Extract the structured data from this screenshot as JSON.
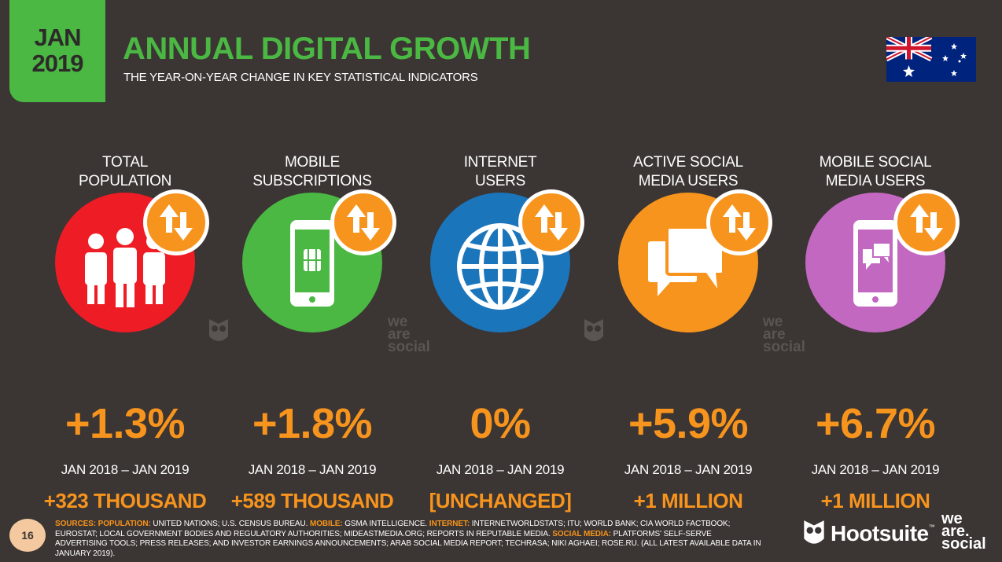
{
  "header": {
    "date_line1": "JAN",
    "date_line2": "2019",
    "title": "ANNUAL DIGITAL GROWTH",
    "subtitle": "THE YEAR-ON-YEAR CHANGE IN KEY STATISTICAL INDICATORS",
    "flag_icon": "australia-flag-icon"
  },
  "colors": {
    "background": "#3b3533",
    "accent_green": "#4ab843",
    "accent_orange": "#f7941d",
    "population_red": "#ee1c25",
    "mobile_green": "#4ab843",
    "internet_blue": "#1b75bb",
    "social_orange": "#f7941d",
    "mobile_social_purple": "#c368c1"
  },
  "indicators": [
    {
      "label_line1": "TOTAL",
      "label_line2": "POPULATION",
      "icon": "people-icon",
      "percent": "+1.3%",
      "period": "JAN 2018 – JAN 2019",
      "change": "+323 THOUSAND"
    },
    {
      "label_line1": "MOBILE",
      "label_line2": "SUBSCRIPTIONS",
      "icon": "mobile-phone-icon",
      "percent": "+1.8%",
      "period": "JAN 2018 – JAN 2019",
      "change": "+589 THOUSAND"
    },
    {
      "label_line1": "INTERNET",
      "label_line2": "USERS",
      "icon": "globe-icon",
      "percent": "0%",
      "period": "JAN 2018 – JAN 2019",
      "change": "[UNCHANGED]"
    },
    {
      "label_line1": "ACTIVE SOCIAL",
      "label_line2": "MEDIA USERS",
      "icon": "chat-bubbles-icon",
      "percent": "+5.9%",
      "period": "JAN 2018 – JAN 2019",
      "change": "+1 MILLION"
    },
    {
      "label_line1": "MOBILE SOCIAL",
      "label_line2": "MEDIA USERS",
      "icon": "mobile-chat-icon",
      "percent": "+6.7%",
      "period": "JAN 2018 – JAN 2019",
      "change": "+1 MILLION"
    }
  ],
  "watermarks": {
    "we": "we",
    "are": "are",
    "social": "social"
  },
  "footer": {
    "page_number": "16",
    "sources_label": "SOURCES:",
    "population_label": "POPULATION:",
    "population_text": " UNITED NATIONS; U.S. CENSUS BUREAU. ",
    "mobile_label": "MOBILE:",
    "mobile_text": " GSMA INTELLIGENCE. ",
    "internet_label": "INTERNET:",
    "internet_text": " INTERNETWORLDSTATS; ITU; WORLD BANK; CIA WORLD FACTBOOK; EUROSTAT; LOCAL GOVERNMENT BODIES AND REGULATORY AUTHORITIES; MIDEASTMEDIA.ORG; REPORTS IN REPUTABLE MEDIA. ",
    "social_label": "SOCIAL MEDIA:",
    "social_text": " PLATFORMS' SELF-SERVE ADVERTISING TOOLS; PRESS RELEASES; AND INVESTOR EARNINGS ANNOUNCEMENTS; ARAB SOCIAL MEDIA REPORT; TECHRASA; NIKI AGHAEI; ROSE.RU. (ALL LATEST AVAILABLE DATA IN JANUARY 2019).",
    "hootsuite": "Hootsuite",
    "tm": "™",
    "was_we": "we",
    "was_are": "are.",
    "was_social": "social"
  }
}
